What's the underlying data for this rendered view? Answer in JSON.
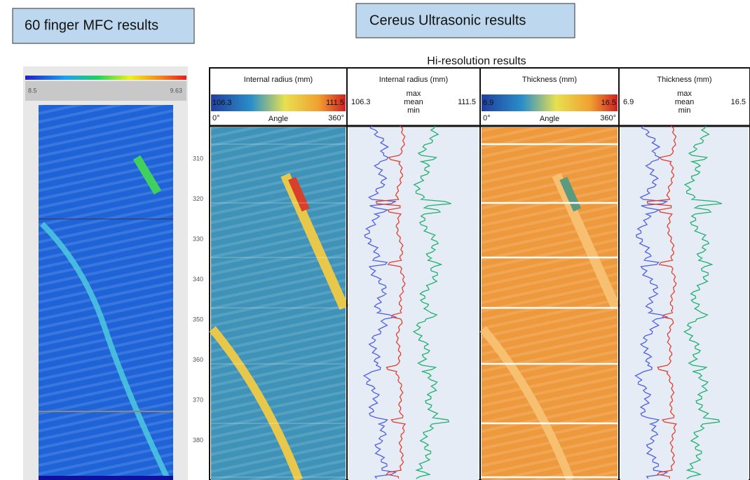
{
  "left_box": "60 finger MFC results",
  "right_box": "Cereus Ultrasonic results",
  "subtitle": "Hi-resolution results",
  "mfc": {
    "scale_min": 8.5,
    "scale_max": 9.63
  },
  "depth_ticks": [
    310,
    320,
    330,
    340,
    350,
    360,
    370,
    380
  ],
  "panels": [
    {
      "title": "Internal radius (mm)",
      "min": 106.3,
      "max": 111.5,
      "angle_start": "0°",
      "angle_label": "Angle",
      "angle_end": "360°"
    },
    {
      "title": "Internal radius (mm)",
      "min": 106.3,
      "max": 111.5,
      "legend": [
        "max",
        "mean",
        "min"
      ]
    },
    {
      "title": "Thickness (mm)",
      "min": 6.9,
      "max": 16.5,
      "angle_start": "0°",
      "angle_label": "Angle",
      "angle_end": "360°"
    },
    {
      "title": "Thickness (mm)",
      "min": 6.9,
      "max": 16.5,
      "legend": [
        "max",
        "mean",
        "min"
      ]
    }
  ]
}
